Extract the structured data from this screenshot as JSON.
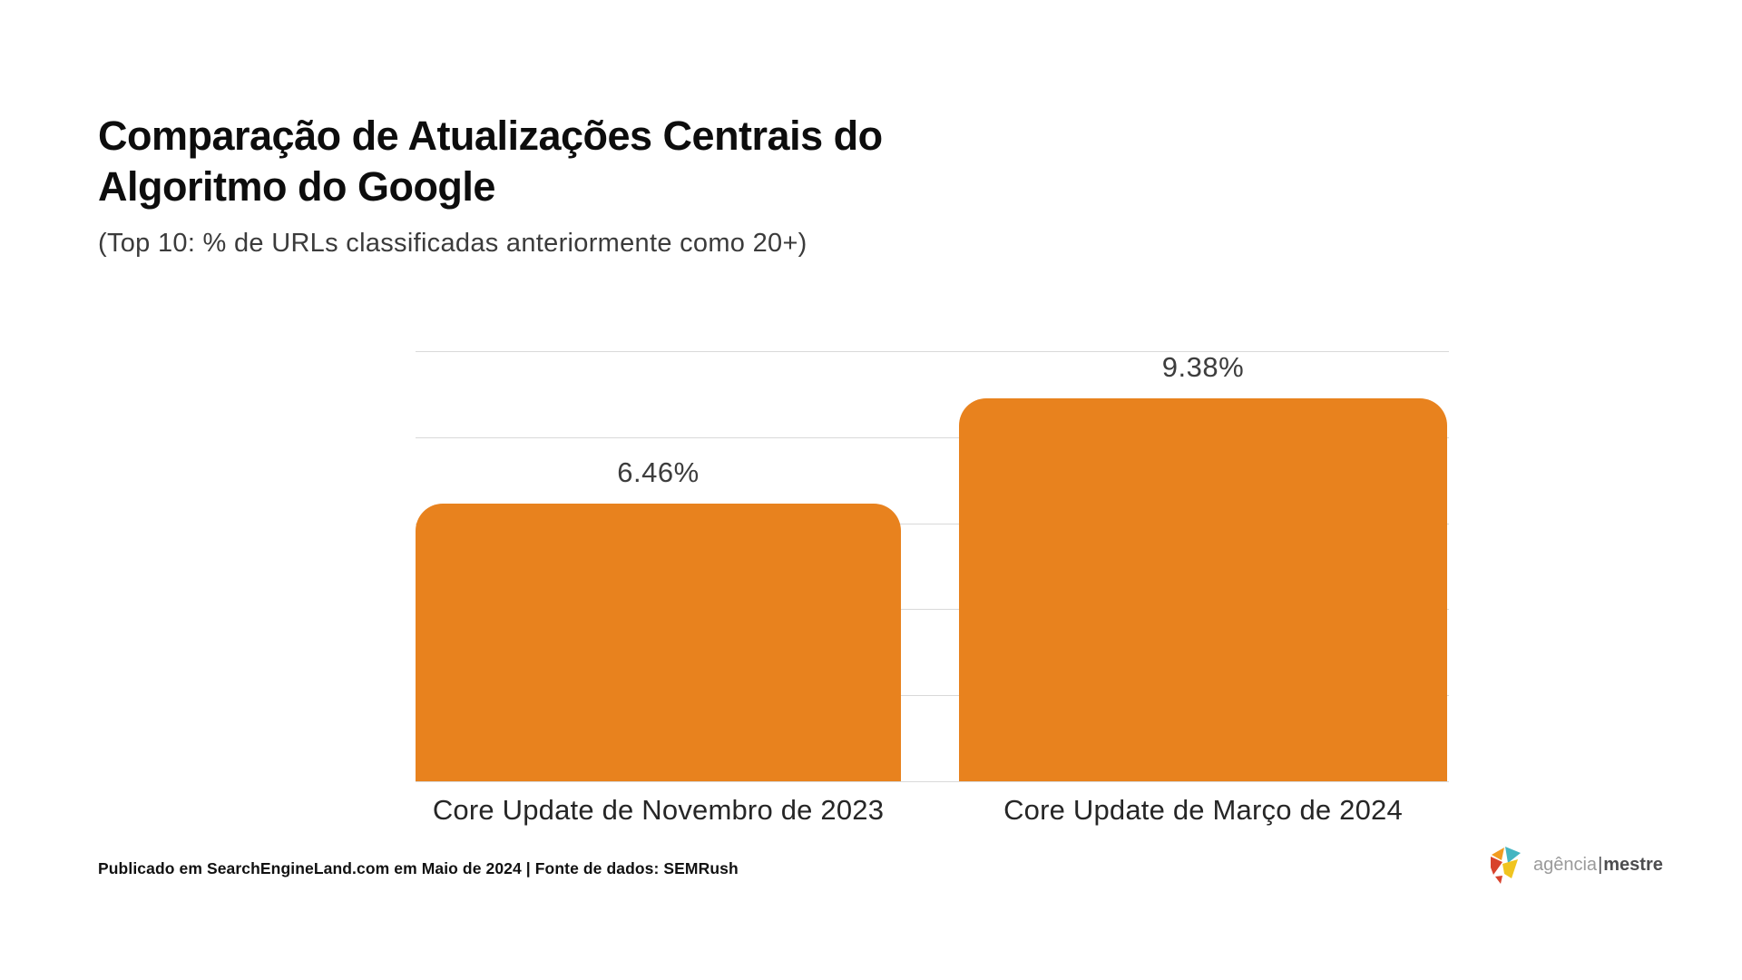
{
  "header": {
    "title_lines": [
      "Comparação de Atualizações Centrais do",
      "Algoritmo do Google"
    ],
    "subtitle": "(Top 10: % de URLs classificadas anteriormente como 20+)"
  },
  "chart_data": {
    "type": "bar",
    "title": "Comparação de Atualizações Centrais do Algoritmo do Google",
    "subtitle": "(Top 10: % de URLs classificadas anteriormente como 20+)",
    "categories": [
      "Core Update de Novembro de 2023",
      "Core Update de Março de 2024"
    ],
    "values": [
      6.46,
      9.38
    ],
    "value_labels": [
      "6.46%",
      "9.38%"
    ],
    "xlabel": "",
    "ylabel": "",
    "ylim": [
      0,
      10
    ],
    "gridline_step": 2,
    "grid": true,
    "legend": false,
    "y_tick_labels_visible": false,
    "bar_color": "#e8821e",
    "gridline_color": "#d9d9d9"
  },
  "footer": {
    "source_text": "Publicado em SearchEngineLand.com em Maio de 2024 | Fonte de dados: SEMRush"
  },
  "brand": {
    "name_light": "agência",
    "separator": "|",
    "name_bold": "mestre",
    "icon_colors": {
      "red": "#d8432c",
      "orange": "#f29c1f",
      "yellow": "#f0c41f",
      "teal": "#45b5c1"
    }
  }
}
